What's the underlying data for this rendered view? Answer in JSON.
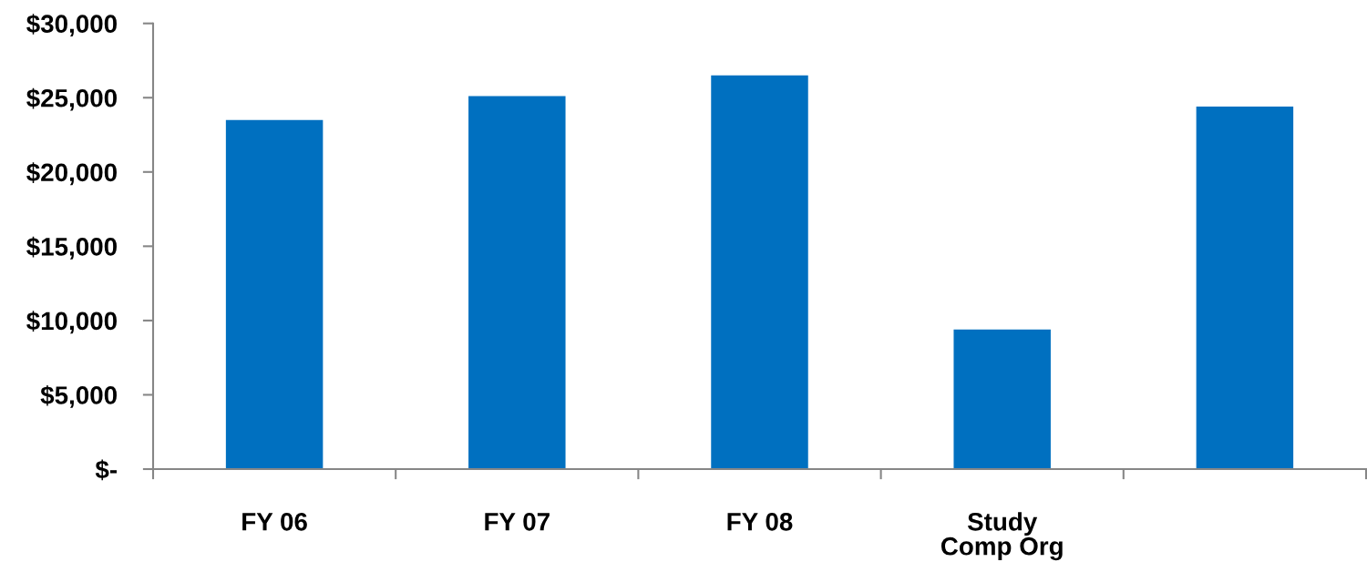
{
  "chart_data": {
    "type": "bar",
    "categories": [
      "FY 06",
      "FY 07",
      "FY 08",
      "Study\nComp Org",
      null
    ],
    "values": [
      23500,
      25100,
      26500,
      9400,
      24400
    ],
    "color": "#0070c0",
    "ylim": [
      0,
      30000
    ],
    "yticks": [
      {
        "value": 0,
        "label": "$-"
      },
      {
        "value": 5000,
        "label": "$5,000"
      },
      {
        "value": 10000,
        "label": "$10,000"
      },
      {
        "value": 15000,
        "label": "$15,000"
      },
      {
        "value": 20000,
        "label": "$20,000"
      },
      {
        "value": 25000,
        "label": "$25,000"
      },
      {
        "value": 30000,
        "label": "$30,000"
      }
    ],
    "grid": false
  }
}
